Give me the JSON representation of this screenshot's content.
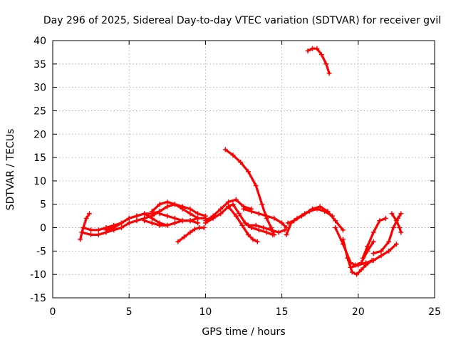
{
  "chart_data": {
    "type": "scatter",
    "title": "Day 296 of 2025, Sidereal Day-to-day VTEC variation (SDTVAR) for receiver gvil",
    "xlabel": "GPS time / hours",
    "ylabel": "SDTVAR / TECUs",
    "xlim": [
      0,
      25
    ],
    "ylim": [
      -15,
      40
    ],
    "xticks": [
      "0",
      "5",
      "10",
      "15",
      "20",
      "25"
    ],
    "yticks": [
      "-15",
      "-10",
      "-5",
      "0",
      "5",
      "10",
      "15",
      "20",
      "25",
      "30",
      "35",
      "40"
    ],
    "grid": true,
    "marker": "+",
    "color": "#ff0000",
    "series": [
      {
        "name": "s1",
        "x": [
          1.8,
          2.0,
          2.2,
          2.4
        ],
        "y": [
          -2.5,
          0.0,
          2.0,
          3.0
        ]
      },
      {
        "name": "s2",
        "x": [
          1.9,
          2.5,
          3.0,
          3.5,
          4.0,
          4.5,
          5.0,
          5.5,
          6.0,
          6.5
        ],
        "y": [
          -1.0,
          -1.5,
          -1.5,
          -1.0,
          -0.5,
          0.0,
          1.0,
          1.5,
          2.0,
          2.5
        ]
      },
      {
        "name": "s3",
        "x": [
          2.0,
          2.5,
          3.0,
          3.5,
          4.0,
          4.5,
          5.0,
          5.5,
          6.0,
          6.5,
          7.0
        ],
        "y": [
          0.0,
          -0.5,
          -0.5,
          0.0,
          0.5,
          1.0,
          2.0,
          2.5,
          3.0,
          3.0,
          3.5
        ]
      },
      {
        "name": "s4",
        "x": [
          3.5,
          4.0,
          4.5,
          5.0,
          5.5,
          6.0,
          6.5,
          7.0,
          7.5
        ],
        "y": [
          -0.5,
          0.0,
          1.0,
          2.0,
          2.5,
          3.0,
          2.0,
          1.0,
          0.5
        ]
      },
      {
        "name": "s5",
        "x": [
          6.5,
          7.0,
          7.5,
          8.0,
          8.5,
          9.0,
          9.5
        ],
        "y": [
          2.5,
          3.5,
          4.5,
          5.0,
          4.0,
          3.0,
          2.0
        ]
      },
      {
        "name": "s6",
        "x": [
          6.5,
          7.0,
          7.5,
          8.0,
          8.5,
          9.0,
          9.5,
          10.0
        ],
        "y": [
          3.5,
          5.0,
          5.5,
          5.0,
          4.5,
          4.0,
          3.0,
          2.5
        ]
      },
      {
        "name": "s7",
        "x": [
          6.0,
          6.5,
          7.0,
          7.5,
          8.0,
          8.5,
          9.0,
          9.5
        ],
        "y": [
          1.5,
          1.0,
          0.5,
          0.5,
          1.0,
          1.5,
          1.5,
          1.0
        ]
      },
      {
        "name": "s8",
        "x": [
          7.0,
          7.5,
          8.0,
          8.5,
          9.0,
          9.5,
          10.0
        ],
        "y": [
          3.0,
          2.5,
          2.0,
          1.5,
          1.5,
          2.0,
          2.0
        ]
      },
      {
        "name": "s9",
        "x": [
          8.2,
          8.6,
          9.0,
          9.3,
          9.6,
          9.9
        ],
        "y": [
          -3.0,
          -2.0,
          -1.0,
          -0.3,
          0.0,
          0.0
        ]
      },
      {
        "name": "s10",
        "x": [
          10.0,
          10.5,
          11.0,
          11.5,
          12.0,
          12.5,
          13.0
        ],
        "y": [
          1.5,
          2.5,
          4.0,
          5.5,
          6.0,
          4.5,
          4.0
        ]
      },
      {
        "name": "s11",
        "x": [
          10.0,
          10.5,
          11.0,
          11.5,
          11.8,
          12.2,
          12.6,
          13.0,
          13.5,
          14.0,
          14.4
        ],
        "y": [
          1.0,
          2.0,
          3.0,
          4.5,
          5.0,
          3.0,
          1.0,
          0.0,
          -0.5,
          -1.0,
          -1.5
        ]
      },
      {
        "name": "s12",
        "x": [
          11.3,
          11.8,
          12.3,
          12.8,
          13.3,
          13.7,
          14.0,
          14.3,
          14.5
        ],
        "y": [
          16.7,
          15.5,
          14.0,
          12.0,
          9.0,
          5.0,
          2.0,
          0.0,
          -1.5
        ]
      },
      {
        "name": "s13",
        "x": [
          11.5,
          12.0,
          12.4,
          12.8,
          13.1,
          13.4
        ],
        "y": [
          4.5,
          2.5,
          0.5,
          -1.5,
          -2.5,
          -3.0
        ]
      },
      {
        "name": "s14",
        "x": [
          12.5,
          13.0,
          13.5,
          14.0,
          14.5,
          15.0,
          15.3
        ],
        "y": [
          4.0,
          3.5,
          3.0,
          2.5,
          2.0,
          1.0,
          0.0
        ]
      },
      {
        "name": "s15",
        "x": [
          12.8,
          13.3,
          13.8,
          14.3,
          14.8,
          15.2
        ],
        "y": [
          0.5,
          0.5,
          0.0,
          -0.5,
          -1.0,
          -0.5
        ]
      },
      {
        "name": "s16",
        "x": [
          15.3,
          15.6,
          16.0,
          16.5,
          17.0,
          17.5,
          18.0,
          18.5,
          19.0
        ],
        "y": [
          -1.5,
          1.0,
          2.0,
          3.0,
          4.0,
          4.5,
          3.5,
          1.5,
          -0.5
        ]
      },
      {
        "name": "s17",
        "x": [
          15.4,
          15.8,
          16.3,
          16.8,
          17.3,
          17.8,
          18.3
        ],
        "y": [
          1.0,
          1.5,
          2.5,
          3.5,
          4.0,
          3.5,
          2.5
        ]
      },
      {
        "name": "s18",
        "x": [
          18.5,
          19.0,
          19.5,
          19.8,
          20.2,
          20.6,
          21.0
        ],
        "y": [
          0.0,
          -3.5,
          -7.5,
          -8.0,
          -7.5,
          -5.0,
          -3.0
        ]
      },
      {
        "name": "s19",
        "x": [
          19.0,
          19.3,
          19.6,
          19.9,
          20.2,
          20.5,
          20.9
        ],
        "y": [
          -2.5,
          -6.5,
          -9.5,
          -10.0,
          -9.0,
          -8.0,
          -7.0
        ]
      },
      {
        "name": "s20",
        "x": [
          19.5,
          20.0,
          20.5,
          21.0,
          21.5,
          22.0,
          22.5
        ],
        "y": [
          -8.5,
          -8.0,
          -7.5,
          -7.0,
          -6.0,
          -5.0,
          -3.5
        ]
      },
      {
        "name": "s21",
        "x": [
          20.3,
          20.6,
          21.0,
          21.4,
          21.8
        ],
        "y": [
          -6.5,
          -4.0,
          -1.0,
          1.5,
          2.0
        ]
      },
      {
        "name": "s22",
        "x": [
          21.0,
          21.5,
          22.0,
          22.3,
          22.6,
          22.8
        ],
        "y": [
          -5.5,
          -5.0,
          -3.0,
          0.0,
          2.0,
          3.0
        ]
      },
      {
        "name": "s23",
        "x": [
          22.2,
          22.5,
          22.7,
          22.8
        ],
        "y": [
          3.0,
          1.5,
          0.0,
          -1.0
        ]
      },
      {
        "name": "s24",
        "x": [
          16.7,
          17.0,
          17.3,
          17.6,
          17.9,
          18.1
        ],
        "y": [
          37.8,
          38.3,
          38.3,
          37.0,
          35.0,
          33.0
        ]
      }
    ]
  }
}
